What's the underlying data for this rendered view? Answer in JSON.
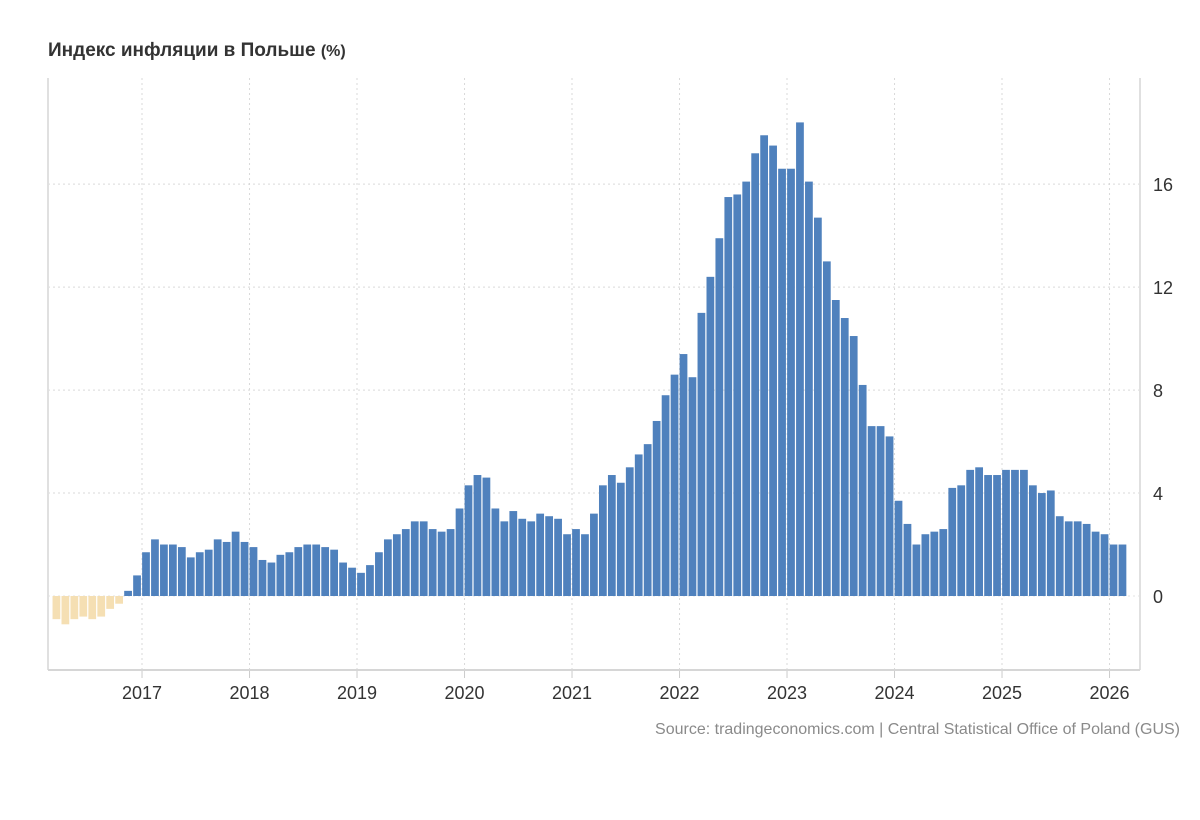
{
  "chart_data": {
    "type": "bar",
    "title": "Индекс инфляции в Польше",
    "unit": "(%)",
    "source": "Source: tradingeconomics.com | Central Statistical Office of Poland (GUS)",
    "start": "2016-03",
    "frequency": "monthly",
    "x_ticks": [
      "2017",
      "2018",
      "2019",
      "2020",
      "2021",
      "2022",
      "2023",
      "2024",
      "2025",
      "2026"
    ],
    "y_ticks": [
      "0",
      "4",
      "8",
      "12",
      "16"
    ],
    "ylim": [
      -2.9,
      20.1
    ],
    "positive_color": "#4f81bd",
    "negative_color": "#f5dfb3",
    "grid": true,
    "values": [
      -0.9,
      -1.1,
      -0.9,
      -0.8,
      -0.9,
      -0.8,
      -0.5,
      -0.3,
      0.2,
      0.8,
      1.7,
      2.2,
      2.0,
      2.0,
      1.9,
      1.5,
      1.7,
      1.8,
      2.2,
      2.1,
      2.5,
      2.1,
      1.9,
      1.4,
      1.3,
      1.6,
      1.7,
      1.9,
      2.0,
      2.0,
      1.9,
      1.8,
      1.3,
      1.1,
      0.9,
      1.2,
      1.7,
      2.2,
      2.4,
      2.6,
      2.9,
      2.9,
      2.6,
      2.5,
      2.6,
      3.4,
      4.3,
      4.7,
      4.6,
      3.4,
      2.9,
      3.3,
      3.0,
      2.9,
      3.2,
      3.1,
      3.0,
      2.4,
      2.6,
      2.4,
      3.2,
      4.3,
      4.7,
      4.4,
      5.0,
      5.5,
      5.9,
      6.8,
      7.8,
      8.6,
      9.4,
      8.5,
      11.0,
      12.4,
      13.9,
      15.5,
      15.6,
      16.1,
      17.2,
      17.9,
      17.5,
      16.6,
      16.6,
      18.4,
      16.1,
      14.7,
      13.0,
      11.5,
      10.8,
      10.1,
      8.2,
      6.6,
      6.6,
      6.2,
      3.7,
      2.8,
      2.0,
      2.4,
      2.5,
      2.6,
      4.2,
      4.3,
      4.9,
      5.0,
      4.7,
      4.7,
      4.9,
      4.9,
      4.9,
      4.3,
      4.0,
      4.1,
      3.1,
      2.9,
      2.9,
      2.8,
      2.5,
      2.4,
      2.0,
      2.0
    ]
  }
}
